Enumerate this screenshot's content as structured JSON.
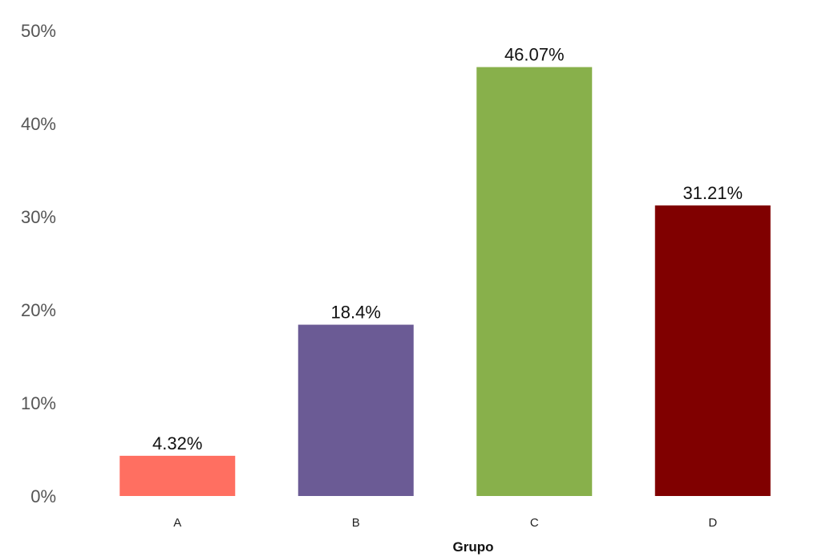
{
  "chart_data": {
    "type": "bar",
    "xlabel": "Grupo",
    "ylabel": "",
    "categories": [
      "A",
      "B",
      "C",
      "D"
    ],
    "values": [
      4.32,
      18.4,
      46.07,
      31.21
    ],
    "value_labels": [
      "4.32%",
      "18.4%",
      "46.07%",
      "31.21%"
    ],
    "colors": [
      "#FF6F61",
      "#6B5B95",
      "#88B04B",
      "#800000"
    ],
    "ylim": [
      0,
      50
    ],
    "y_ticks": [
      0,
      10,
      20,
      30,
      40,
      50
    ],
    "y_tick_labels": [
      "0%",
      "10%",
      "20%",
      "30%",
      "40%",
      "50%"
    ],
    "grid": false,
    "legend": "none"
  }
}
